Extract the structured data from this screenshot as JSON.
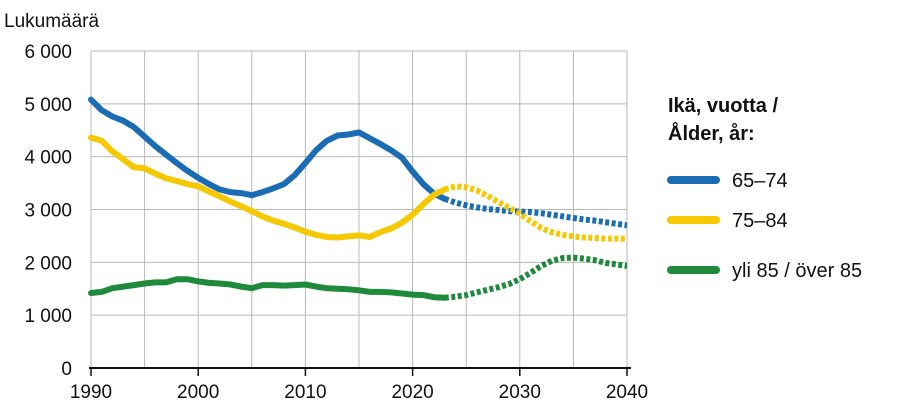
{
  "chart_data": {
    "type": "line",
    "ylabel": "Lukumäärä",
    "ylim": [
      0,
      6000
    ],
    "xlim": [
      1990,
      2040
    ],
    "x_ticks": [
      "1990",
      "2000",
      "2010",
      "2020",
      "2030",
      "2040"
    ],
    "y_ticks": [
      "0",
      "1 000",
      "2 000",
      "3 000",
      "4 000",
      "5 000",
      "6 000"
    ],
    "grid": true,
    "legend_position": "right",
    "legend_title": [
      "Ikä, vuotta /",
      "Ålder, år:"
    ],
    "projection_start": 2023,
    "series": [
      {
        "name": "65–74",
        "color": "#1a6db5",
        "points": [
          [
            1990,
            5080
          ],
          [
            1991,
            4880
          ],
          [
            1992,
            4760
          ],
          [
            1993,
            4680
          ],
          [
            1994,
            4560
          ],
          [
            1995,
            4380
          ],
          [
            1996,
            4200
          ],
          [
            1997,
            4040
          ],
          [
            1998,
            3880
          ],
          [
            1999,
            3730
          ],
          [
            2000,
            3600
          ],
          [
            2001,
            3480
          ],
          [
            2002,
            3380
          ],
          [
            2003,
            3330
          ],
          [
            2004,
            3310
          ],
          [
            2005,
            3270
          ],
          [
            2006,
            3330
          ],
          [
            2007,
            3400
          ],
          [
            2008,
            3480
          ],
          [
            2009,
            3650
          ],
          [
            2010,
            3880
          ],
          [
            2011,
            4120
          ],
          [
            2012,
            4300
          ],
          [
            2013,
            4400
          ],
          [
            2014,
            4420
          ],
          [
            2015,
            4460
          ],
          [
            2016,
            4350
          ],
          [
            2017,
            4240
          ],
          [
            2018,
            4120
          ],
          [
            2019,
            3980
          ],
          [
            2020,
            3720
          ],
          [
            2021,
            3480
          ],
          [
            2022,
            3300
          ],
          [
            2023,
            3200
          ],
          [
            2024,
            3130
          ],
          [
            2025,
            3080
          ],
          [
            2026,
            3040
          ],
          [
            2027,
            3010
          ],
          [
            2028,
            2990
          ],
          [
            2029,
            2970
          ],
          [
            2030,
            2960
          ],
          [
            2031,
            2950
          ],
          [
            2032,
            2930
          ],
          [
            2033,
            2900
          ],
          [
            2034,
            2870
          ],
          [
            2035,
            2840
          ],
          [
            2036,
            2810
          ],
          [
            2037,
            2790
          ],
          [
            2038,
            2760
          ],
          [
            2039,
            2730
          ],
          [
            2040,
            2700
          ]
        ]
      },
      {
        "name": "75–84",
        "color": "#f5c800",
        "points": [
          [
            1990,
            4360
          ],
          [
            1991,
            4300
          ],
          [
            1992,
            4100
          ],
          [
            1993,
            3950
          ],
          [
            1994,
            3800
          ],
          [
            1995,
            3780
          ],
          [
            1996,
            3680
          ],
          [
            1997,
            3590
          ],
          [
            1998,
            3540
          ],
          [
            1999,
            3480
          ],
          [
            2000,
            3440
          ],
          [
            2001,
            3340
          ],
          [
            2002,
            3250
          ],
          [
            2003,
            3150
          ],
          [
            2004,
            3060
          ],
          [
            2005,
            2970
          ],
          [
            2006,
            2870
          ],
          [
            2007,
            2790
          ],
          [
            2008,
            2730
          ],
          [
            2009,
            2660
          ],
          [
            2010,
            2580
          ],
          [
            2011,
            2520
          ],
          [
            2012,
            2480
          ],
          [
            2013,
            2470
          ],
          [
            2014,
            2490
          ],
          [
            2015,
            2510
          ],
          [
            2016,
            2480
          ],
          [
            2017,
            2570
          ],
          [
            2018,
            2640
          ],
          [
            2019,
            2750
          ],
          [
            2020,
            2900
          ],
          [
            2021,
            3100
          ],
          [
            2022,
            3280
          ],
          [
            2023,
            3380
          ],
          [
            2024,
            3440
          ],
          [
            2025,
            3420
          ],
          [
            2026,
            3360
          ],
          [
            2027,
            3260
          ],
          [
            2028,
            3140
          ],
          [
            2029,
            3030
          ],
          [
            2030,
            2920
          ],
          [
            2031,
            2780
          ],
          [
            2032,
            2650
          ],
          [
            2033,
            2570
          ],
          [
            2034,
            2520
          ],
          [
            2035,
            2490
          ],
          [
            2036,
            2470
          ],
          [
            2037,
            2460
          ],
          [
            2038,
            2450
          ],
          [
            2039,
            2450
          ],
          [
            2040,
            2450
          ]
        ]
      },
      {
        "name": "yli 85 / över 85",
        "color": "#1f8a3b",
        "points": [
          [
            1990,
            1420
          ],
          [
            1991,
            1440
          ],
          [
            1992,
            1510
          ],
          [
            1993,
            1540
          ],
          [
            1994,
            1570
          ],
          [
            1995,
            1600
          ],
          [
            1996,
            1620
          ],
          [
            1997,
            1620
          ],
          [
            1998,
            1680
          ],
          [
            1999,
            1680
          ],
          [
            2000,
            1640
          ],
          [
            2001,
            1610
          ],
          [
            2002,
            1600
          ],
          [
            2003,
            1580
          ],
          [
            2004,
            1540
          ],
          [
            2005,
            1510
          ],
          [
            2006,
            1570
          ],
          [
            2007,
            1570
          ],
          [
            2008,
            1560
          ],
          [
            2009,
            1570
          ],
          [
            2010,
            1580
          ],
          [
            2011,
            1540
          ],
          [
            2012,
            1510
          ],
          [
            2013,
            1500
          ],
          [
            2014,
            1490
          ],
          [
            2015,
            1470
          ],
          [
            2016,
            1440
          ],
          [
            2017,
            1440
          ],
          [
            2018,
            1430
          ],
          [
            2019,
            1410
          ],
          [
            2020,
            1390
          ],
          [
            2021,
            1380
          ],
          [
            2022,
            1340
          ],
          [
            2023,
            1330
          ],
          [
            2024,
            1350
          ],
          [
            2025,
            1380
          ],
          [
            2026,
            1430
          ],
          [
            2027,
            1480
          ],
          [
            2028,
            1530
          ],
          [
            2029,
            1590
          ],
          [
            2030,
            1680
          ],
          [
            2031,
            1800
          ],
          [
            2032,
            1930
          ],
          [
            2033,
            2030
          ],
          [
            2034,
            2080
          ],
          [
            2035,
            2090
          ],
          [
            2036,
            2070
          ],
          [
            2037,
            2040
          ],
          [
            2038,
            1990
          ],
          [
            2039,
            1960
          ],
          [
            2040,
            1930
          ]
        ]
      }
    ]
  }
}
